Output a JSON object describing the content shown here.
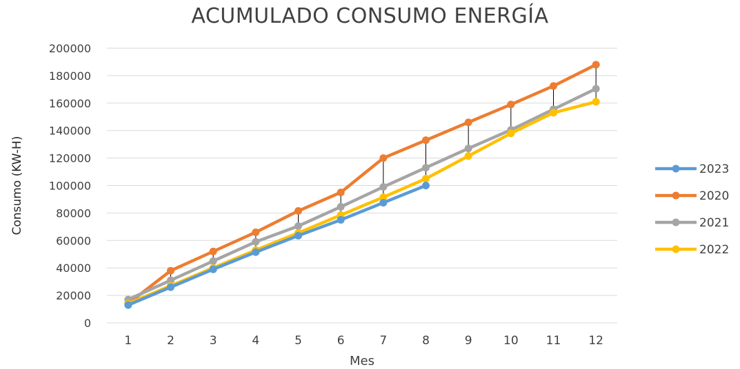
{
  "chart_data": {
    "type": "line",
    "title": "ACUMULADO CONSUMO ENERGÍA",
    "xlabel": "Mes",
    "ylabel": "Consumo (KW-H)",
    "categories": [
      "1",
      "2",
      "3",
      "4",
      "5",
      "6",
      "7",
      "8",
      "9",
      "10",
      "11",
      "12"
    ],
    "ylim": [
      0,
      200000
    ],
    "yticks": [
      "0",
      "20000",
      "40000",
      "60000",
      "80000",
      "100000",
      "120000",
      "140000",
      "160000",
      "180000",
      "200000"
    ],
    "grid": true,
    "legend_position": "right",
    "drop_lines": true,
    "series": [
      {
        "name": "2023",
        "color": "#5B9BD5",
        "values": [
          13000,
          26000,
          39000,
          51500,
          63500,
          75000,
          87500,
          100000,
          null,
          null,
          null,
          null
        ]
      },
      {
        "name": "2020",
        "color": "#ED7D31",
        "values": [
          14000,
          38000,
          52000,
          66000,
          81500,
          95000,
          120000,
          133000,
          146000,
          159000,
          172500,
          188000
        ]
      },
      {
        "name": "2021",
        "color": "#A5A5A5",
        "values": [
          17000,
          31000,
          45000,
          59000,
          70500,
          84500,
          99000,
          113000,
          127000,
          140500,
          155500,
          170500
        ]
      },
      {
        "name": "2022",
        "color": "#FFC000",
        "values": [
          14000,
          27000,
          40000,
          53000,
          65500,
          78500,
          91500,
          105000,
          121500,
          138000,
          153000,
          161000
        ]
      }
    ]
  }
}
